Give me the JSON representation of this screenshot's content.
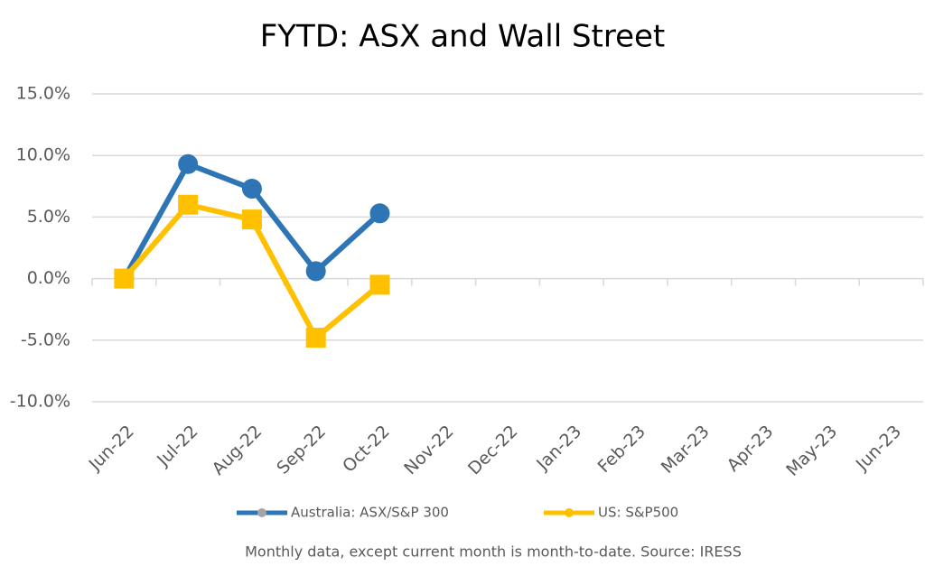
{
  "chart_data": {
    "type": "line",
    "title": "FYTD: ASX and Wall Street",
    "categories": [
      "Jun-22",
      "Jul-22",
      "Aug-22",
      "Sep-22",
      "Oct-22",
      "Nov-22",
      "Dec-22",
      "Jan-23",
      "Feb-23",
      "Mar-23",
      "Apr-23",
      "May-23",
      "Jun-23"
    ],
    "series": [
      {
        "name": "Australia: ASX/S&P 300",
        "color": "#2e75b6",
        "marker": "circle",
        "values": [
          0,
          9.3,
          7.3,
          0.6,
          5.3,
          null,
          null,
          null,
          null,
          null,
          null,
          null,
          null
        ]
      },
      {
        "name": "US: S&P500",
        "color": "#ffc000",
        "marker": "square",
        "values": [
          0,
          6.0,
          4.8,
          -4.8,
          -0.5,
          null,
          null,
          null,
          null,
          null,
          null,
          null,
          null
        ]
      }
    ],
    "ylim": [
      -10,
      15
    ],
    "yticks": [
      {
        "value": -10,
        "label": "-10.0%"
      },
      {
        "value": -5,
        "label": "-5.0%"
      },
      {
        "value": 0,
        "label": "0.0%"
      },
      {
        "value": 5,
        "label": "5.0%"
      },
      {
        "value": 10,
        "label": "10.0%"
      },
      {
        "value": 15,
        "label": "15.0%"
      }
    ],
    "grid": true,
    "legend": "bottom",
    "note": "Monthly data, except current month is month-to-date.  Source: IRESS"
  }
}
